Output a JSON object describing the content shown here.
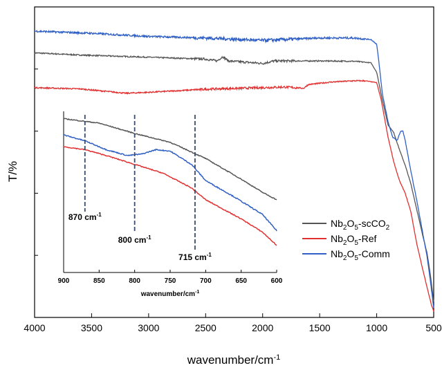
{
  "chart_data": [
    {
      "type": "line",
      "title": "",
      "xlabel": "wavenumber/cm",
      "xlabel_sup": "-1",
      "ylabel": "T/%",
      "xlim": [
        4000,
        500
      ],
      "ylim": [
        0,
        1
      ],
      "x_ticks": [
        4000,
        3500,
        3000,
        2500,
        2000,
        1500,
        1000,
        500
      ],
      "y_tick_labels_shown": false,
      "grid": false,
      "legend_position": "lower-right",
      "series": [
        {
          "name": "Nb2O5-scCO2",
          "label_parts": [
            "Nb",
            "2",
            "O",
            "5",
            "-scCO",
            "2"
          ],
          "color": "#555555",
          "noise": 0.004,
          "points": [
            [
              4000,
              0.852
            ],
            [
              3600,
              0.845
            ],
            [
              3000,
              0.838
            ],
            [
              2500,
              0.832
            ],
            [
              2400,
              0.826
            ],
            [
              2350,
              0.84
            ],
            [
              2300,
              0.826
            ],
            [
              2000,
              0.818
            ],
            [
              1900,
              0.826
            ],
            [
              1500,
              0.826
            ],
            [
              1200,
              0.825
            ],
            [
              1050,
              0.82
            ],
            [
              1000,
              0.79
            ],
            [
              950,
              0.7
            ],
            [
              900,
              0.62
            ],
            [
              850,
              0.595
            ],
            [
              800,
              0.54
            ],
            [
              750,
              0.49
            ],
            [
              700,
              0.43
            ],
            [
              650,
              0.35
            ],
            [
              600,
              0.27
            ],
            [
              560,
              0.21
            ],
            [
              530,
              0.14
            ],
            [
              510,
              0.08
            ],
            [
              500,
              0.05
            ]
          ]
        },
        {
          "name": "Nb2O5-Ref",
          "label_parts": [
            "Nb",
            "2",
            "O",
            "5",
            "-Ref",
            ""
          ],
          "color": "#e03030",
          "noise": 0.004,
          "points": [
            [
              4000,
              0.74
            ],
            [
              3600,
              0.736
            ],
            [
              3200,
              0.722
            ],
            [
              3000,
              0.725
            ],
            [
              2500,
              0.735
            ],
            [
              2000,
              0.74
            ],
            [
              1800,
              0.742
            ],
            [
              1640,
              0.738
            ],
            [
              1600,
              0.75
            ],
            [
              1400,
              0.758
            ],
            [
              1200,
              0.762
            ],
            [
              1100,
              0.762
            ],
            [
              1000,
              0.756
            ],
            [
              960,
              0.7
            ],
            [
              900,
              0.58
            ],
            [
              850,
              0.5
            ],
            [
              800,
              0.44
            ],
            [
              750,
              0.4
            ],
            [
              700,
              0.34
            ],
            [
              650,
              0.24
            ],
            [
              600,
              0.16
            ],
            [
              560,
              0.1
            ],
            [
              520,
              0.04
            ],
            [
              500,
              0.02
            ]
          ]
        },
        {
          "name": "Nb2O5-Comm",
          "label_parts": [
            "Nb",
            "2",
            "O",
            "5",
            "-Comm",
            ""
          ],
          "color": "#2f5fc4",
          "noise": 0.006,
          "points": [
            [
              4000,
              0.922
            ],
            [
              3500,
              0.915
            ],
            [
              3000,
              0.905
            ],
            [
              2500,
              0.9
            ],
            [
              2000,
              0.892
            ],
            [
              1500,
              0.9
            ],
            [
              1200,
              0.9
            ],
            [
              1050,
              0.895
            ],
            [
              1000,
              0.88
            ],
            [
              980,
              0.82
            ],
            [
              950,
              0.72
            ],
            [
              900,
              0.63
            ],
            [
              860,
              0.58
            ],
            [
              820,
              0.57
            ],
            [
              790,
              0.6
            ],
            [
              770,
              0.6
            ],
            [
              750,
              0.57
            ],
            [
              700,
              0.47
            ],
            [
              650,
              0.38
            ],
            [
              600,
              0.28
            ],
            [
              560,
              0.2
            ],
            [
              530,
              0.12
            ],
            [
              510,
              0.06
            ],
            [
              500,
              0.03
            ]
          ]
        }
      ],
      "inset": {
        "type": "line",
        "xlabel": "wavenumber/cm",
        "xlabel_sup": "-1",
        "xlim": [
          900,
          600
        ],
        "ylim": [
          0,
          1
        ],
        "x_ticks": [
          900,
          850,
          800,
          750,
          700,
          650,
          600
        ],
        "series": [
          {
            "name": "Nb2O5-scCO2",
            "color": "#555555",
            "noise": 0.006,
            "points": [
              [
                900,
                0.95
              ],
              [
                850,
                0.92
              ],
              [
                800,
                0.85
              ],
              [
                750,
                0.79
              ],
              [
                700,
                0.68
              ],
              [
                650,
                0.54
              ],
              [
                620,
                0.45
              ],
              [
                600,
                0.4
              ]
            ]
          },
          {
            "name": "Nb2O5-Comm",
            "color": "#2f5fc4",
            "noise": 0.007,
            "points": [
              [
                900,
                0.84
              ],
              [
                870,
                0.8
              ],
              [
                840,
                0.74
              ],
              [
                810,
                0.7
              ],
              [
                790,
                0.71
              ],
              [
                770,
                0.74
              ],
              [
                750,
                0.73
              ],
              [
                720,
                0.64
              ],
              [
                700,
                0.53
              ],
              [
                660,
                0.42
              ],
              [
                620,
                0.3
              ],
              [
                600,
                0.19
              ]
            ]
          },
          {
            "name": "Nb2O5-Ref",
            "color": "#e03030",
            "noise": 0.006,
            "points": [
              [
                900,
                0.76
              ],
              [
                870,
                0.74
              ],
              [
                840,
                0.7
              ],
              [
                800,
                0.64
              ],
              [
                760,
                0.58
              ],
              [
                720,
                0.48
              ],
              [
                700,
                0.4
              ],
              [
                650,
                0.27
              ],
              [
                620,
                0.18
              ],
              [
                600,
                0.09
              ]
            ]
          }
        ],
        "markers": [
          {
            "x": 870,
            "label": "870 cm",
            "sup": "-1"
          },
          {
            "x": 800,
            "label": "800 cm",
            "sup": "-1"
          },
          {
            "x": 715,
            "label": "715 cm",
            "sup": "-1"
          }
        ]
      }
    }
  ]
}
